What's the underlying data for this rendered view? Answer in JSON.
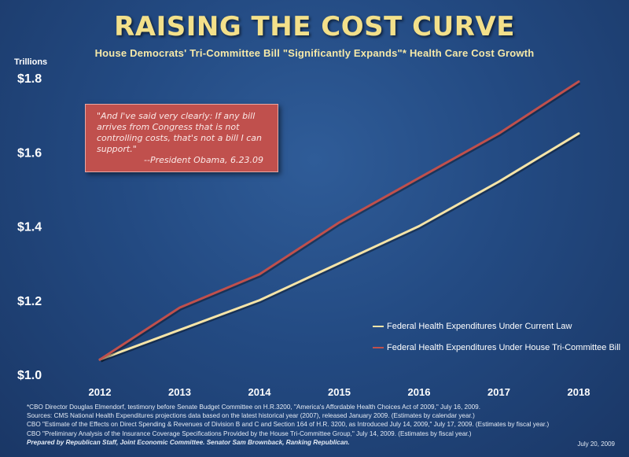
{
  "chart_data": {
    "type": "line",
    "title": "RAISING THE COST CURVE",
    "subtitle": "House Democrats'  Tri-Committee Bill \"Significantly Expands\"*  Health Care Cost Growth",
    "ylabel": "Trillions",
    "xlabel": "",
    "x": [
      "2012",
      "2013",
      "2014",
      "2015",
      "2016",
      "2017",
      "2018"
    ],
    "ylim": [
      1.0,
      1.8
    ],
    "yticks": [
      1.0,
      1.2,
      1.4,
      1.6,
      1.8
    ],
    "ytick_labels": [
      "$1.0",
      "$1.2",
      "$1.4",
      "$1.6",
      "$1.8"
    ],
    "grid": false,
    "legend_position": "bottom-right",
    "series": [
      {
        "name": "Federal Health Expenditures Under Current Law",
        "color": "#f5e4a8",
        "values": [
          1.04,
          1.12,
          1.2,
          1.3,
          1.4,
          1.52,
          1.65
        ]
      },
      {
        "name": "Federal Health Expenditures Under House Tri-Committee  Bill",
        "color": "#c0504d",
        "values": [
          1.04,
          1.18,
          1.27,
          1.41,
          1.53,
          1.65,
          1.79
        ]
      }
    ]
  },
  "quote": {
    "text": "\"And I've said very clearly: If any bill arrives from Congress that is not controlling costs, that's not a bill I can support.\"",
    "attribution": "--President Obama, 6.23.09"
  },
  "footnotes": [
    "*CBO Director Douglas Elmendorf, testimony before Senate Budget Committee on H.R.3200, \"America's Affordable Health Choices Act of 2009,\" July 16, 2009.",
    "Sources: CMS National Health Expenditures projections  data based on the latest historical year (2007), released January 2009. (Estimates by calendar year.)",
    "CBO \"Estimate  of the Effects on Direct Spending & Revenues of Division B and C and Section 164 of H.R. 3200, as Introduced July 14, 2009,\" July 17, 2009. (Estimates by fiscal year.)",
    "CBO \"Preliminary Analysis of the Insurance Coverage Specifications Provided by the House Tri-Committee Group,\" July 14, 2009. (Estimates by fiscal year.)"
  ],
  "prepared_by": "Prepared by Republican Staff, Joint Economic Committee.  Senator Sam Brownback, Ranking Republican.",
  "date": "July 20, 2009"
}
